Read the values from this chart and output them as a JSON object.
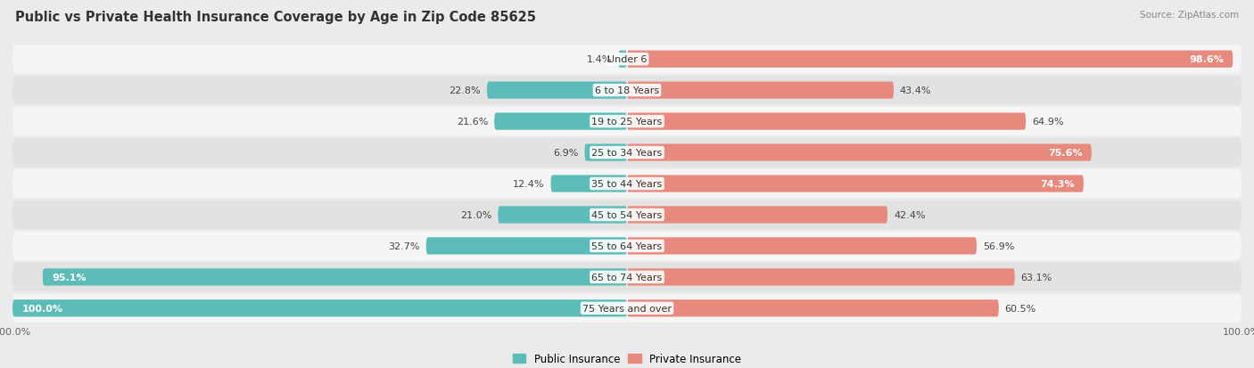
{
  "title": "Public vs Private Health Insurance Coverage by Age in Zip Code 85625",
  "source": "Source: ZipAtlas.com",
  "categories": [
    "Under 6",
    "6 to 18 Years",
    "19 to 25 Years",
    "25 to 34 Years",
    "35 to 44 Years",
    "45 to 54 Years",
    "55 to 64 Years",
    "65 to 74 Years",
    "75 Years and over"
  ],
  "public_values": [
    1.4,
    22.8,
    21.6,
    6.9,
    12.4,
    21.0,
    32.7,
    95.1,
    100.0
  ],
  "private_values": [
    98.6,
    43.4,
    64.9,
    75.6,
    74.3,
    42.4,
    56.9,
    63.1,
    60.5
  ],
  "public_color": "#5bbcb8",
  "private_color": "#e8897e",
  "background_color": "#ebebeb",
  "row_bg_light": "#f5f5f5",
  "row_bg_dark": "#e2e2e2",
  "max_value": 100.0,
  "title_fontsize": 10.5,
  "label_fontsize": 8,
  "tick_fontsize": 8,
  "legend_fontsize": 8.5,
  "source_fontsize": 7.5
}
